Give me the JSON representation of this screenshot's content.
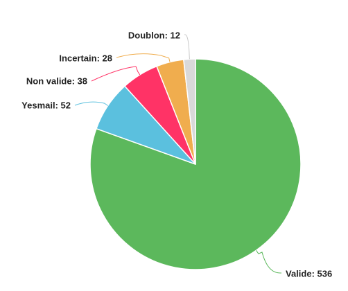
{
  "chart_data": {
    "type": "pie",
    "title": "",
    "slices": [
      {
        "label": "Valide",
        "value": 536,
        "color": "#5cb85c",
        "text": "Valide: 536"
      },
      {
        "label": "Yesmail",
        "value": 52,
        "color": "#5bc0de",
        "text": "Yesmail: 52"
      },
      {
        "label": "Non valide",
        "value": 38,
        "color": "#ff3366",
        "text": "Non valide: 38"
      },
      {
        "label": "Incertain",
        "value": 28,
        "color": "#f0ad4e",
        "text": "Incertain: 28"
      },
      {
        "label": "Doublon",
        "value": 12,
        "color": "#d9d9d9",
        "text": "Doublon: 12"
      }
    ],
    "start_angle": "top",
    "direction": "clockwise",
    "legend": "none",
    "data_labels": "outside with connector lines"
  }
}
